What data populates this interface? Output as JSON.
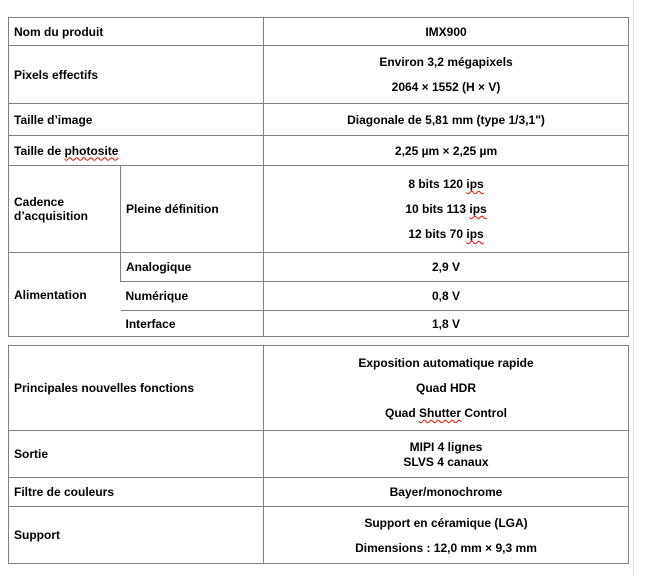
{
  "colors": {
    "table_border": "#808080",
    "text": "#000000",
    "background": "#ffffff",
    "misspell_underline": "#e01000",
    "page_edge_line": "#dcdcdc"
  },
  "top_table": {
    "product_name": {
      "label": "Nom du produit",
      "value": "IMX900"
    },
    "effective_pixels": {
      "label": "Pixels effectifs",
      "values": [
        "Environ 3,2 mégapixels",
        "2064 × 1552 (H × V)"
      ]
    },
    "image_size": {
      "label": "Taille d’image",
      "value": "Diagonale de 5,81 mm (type 1/3,1\")"
    },
    "photosite_size": {
      "label_segments": [
        {
          "text": "Taille de "
        },
        {
          "text": "photosite",
          "misspelled": true
        }
      ],
      "value": "2,25 µm × 2,25 µm"
    },
    "frame_rate": {
      "label": "Cadence d’acquisition",
      "sublabel": "Pleine définition",
      "value_segments": [
        [
          {
            "text": "8 bits 120 "
          },
          {
            "text": "ips",
            "misspelled": true
          }
        ],
        [
          {
            "text": "10 bits 113 "
          },
          {
            "text": "ips",
            "misspelled": true
          }
        ],
        [
          {
            "text": "12 bits 70 "
          },
          {
            "text": "ips",
            "misspelled": true
          }
        ]
      ]
    },
    "power_supply": {
      "label": "Alimentation",
      "entries": [
        {
          "sublabel": "Analogique",
          "value": "2,9 V"
        },
        {
          "sublabel": "Numérique",
          "value": "0,8 V"
        },
        {
          "sublabel": "Interface",
          "value": "1,8 V"
        }
      ]
    }
  },
  "bottom_table": {
    "key_new_functions": {
      "label": "Principales nouvelles fonctions",
      "value_segments": [
        [
          {
            "text": "Exposition automatique rapide"
          }
        ],
        [
          {
            "text": "Quad HDR"
          }
        ],
        [
          {
            "text": "Quad "
          },
          {
            "text": "Shutter",
            "misspelled": true
          },
          {
            "text": " Control"
          }
        ]
      ]
    },
    "output": {
      "label": "Sortie",
      "value_lines": [
        "MIPI 4 lignes",
        "SLVS 4 canaux"
      ]
    },
    "color_filter": {
      "label": "Filtre de couleurs",
      "value": "Bayer/monochrome"
    },
    "package": {
      "label": "Support",
      "values": [
        "Support en céramique (LGA)",
        "Dimensions : 12,0 mm × 9,3 mm"
      ]
    }
  }
}
